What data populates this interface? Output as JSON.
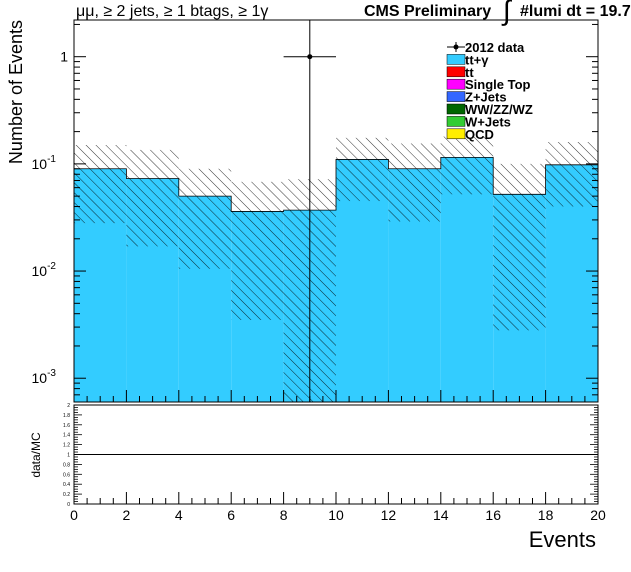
{
  "header": {
    "selection_label": "μμ, ≥ 2 jets, ≥ 1 btags, ≥ 1γ",
    "experiment_label": "CMS Preliminary",
    "lumi_label": "#lumi dt = 19.7"
  },
  "chart_data": [
    {
      "type": "bar",
      "stacked": true,
      "yscale": "log",
      "ylabel": "Number of Events",
      "ylim": [
        0.0006,
        2.2
      ],
      "xlim": [
        0,
        20
      ],
      "bin_edges": [
        0,
        2,
        4,
        6,
        8,
        10,
        12,
        14,
        16,
        18,
        20
      ],
      "y_tick_labels": [
        {
          "value": 0.001,
          "base": "10",
          "exp": "-3"
        },
        {
          "value": 0.01,
          "base": "10",
          "exp": "-2"
        },
        {
          "value": 0.1,
          "base": "10",
          "exp": "-1"
        },
        {
          "value": 1,
          "base": "1",
          "exp": ""
        }
      ],
      "series": [
        {
          "name": "tt+γ",
          "color": "#33ccff",
          "values": [
            0.09,
            0.073,
            0.05,
            0.036,
            0.037,
            0.11,
            0.09,
            0.115,
            0.052,
            0.098
          ]
        },
        {
          "name": "tt",
          "color": "#ff0000",
          "values": [
            0,
            0,
            0,
            0,
            0,
            0,
            0,
            0,
            0,
            0
          ]
        },
        {
          "name": "Single Top",
          "color": "#ff00ff",
          "values": [
            0,
            0,
            0,
            0,
            0,
            0,
            0,
            0,
            0,
            0
          ]
        },
        {
          "name": "Z+Jets",
          "color": "#3366ff",
          "values": [
            0,
            0,
            0,
            0,
            0,
            0,
            0,
            0,
            0,
            0
          ]
        },
        {
          "name": "WW/ZZ/WZ",
          "color": "#006600",
          "values": [
            0,
            0,
            0,
            0,
            0,
            0,
            0,
            0,
            0,
            0
          ]
        },
        {
          "name": "W+Jets",
          "color": "#33cc33",
          "values": [
            0,
            0,
            0,
            0,
            0,
            0,
            0,
            0,
            0,
            0
          ]
        },
        {
          "name": "QCD",
          "color": "#ffee00",
          "values": [
            0,
            0,
            0,
            0,
            0,
            0,
            0,
            0,
            0,
            0
          ]
        }
      ],
      "uncertainty_band": {
        "lower": [
          0.028,
          0.017,
          0.0105,
          0.0035,
          0.0006,
          0.045,
          0.029,
          0.052,
          0.0028,
          0.04
        ],
        "upper": [
          0.15,
          0.135,
          0.09,
          0.068,
          0.072,
          0.175,
          0.155,
          0.18,
          0.1,
          0.16
        ]
      },
      "data_points": {
        "name": "2012 data",
        "points": [
          {
            "x": 9,
            "y": 1,
            "xerr": 1,
            "ylow": 0.0006,
            "yhigh": 2.2
          }
        ]
      },
      "legend_position": "top-right"
    },
    {
      "type": "line",
      "ylabel": "data/MC",
      "xlabel": "Events",
      "xlim": [
        0,
        20
      ],
      "ylim": [
        0,
        2
      ],
      "x_tick_labels": [
        "0",
        "2",
        "4",
        "6",
        "8",
        "10",
        "12",
        "14",
        "16",
        "18",
        "20"
      ],
      "y_tick_labels": [
        "0",
        "0.2",
        "0.4",
        "0.6",
        "0.8",
        "1",
        "1.2",
        "1.4",
        "1.6",
        "1.8",
        "2"
      ],
      "reference_line": 1
    }
  ]
}
